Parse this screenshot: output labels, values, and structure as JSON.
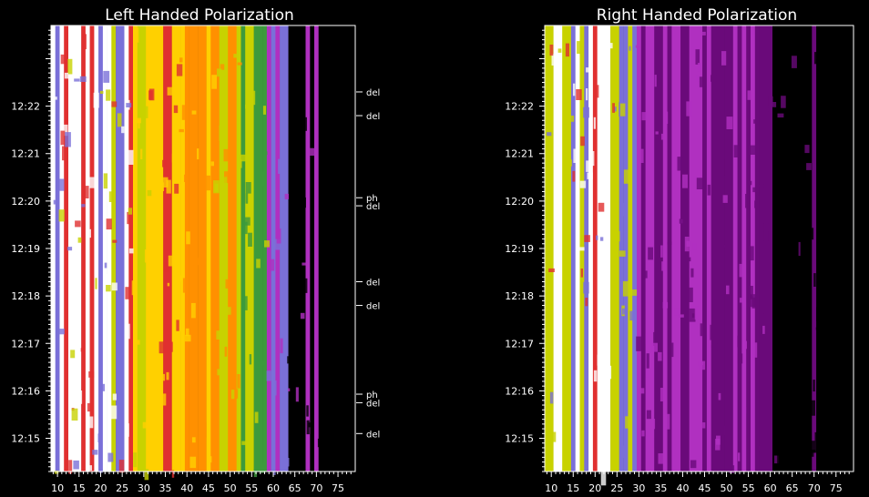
{
  "chart_data": [
    {
      "type": "heatmap",
      "title": "Left Handed Polarization",
      "xlabel": "",
      "ylabel": "",
      "xlim": [
        8.5,
        79
      ],
      "ylim": [
        734.3,
        743.7
      ],
      "x_ticks": [
        10,
        15,
        20,
        25,
        30,
        35,
        40,
        45,
        50,
        55,
        60,
        65,
        70,
        75
      ],
      "x_tick_labels": [
        "10",
        "15",
        "20",
        "25",
        "30",
        "35",
        "40",
        "45",
        "50",
        "55",
        "60",
        "65",
        "70",
        "75"
      ],
      "y_ticks": [
        735,
        736,
        737,
        738,
        739,
        740,
        741,
        742
      ],
      "y_tick_labels": [
        "12:15",
        "12:16",
        "12:17",
        "12:18",
        "12:19",
        "12:20",
        "12:21",
        "12:22"
      ],
      "annotations": [
        {
          "label": "del",
          "y": 742.3
        },
        {
          "label": "del",
          "y": 741.8
        },
        {
          "label": "ph",
          "y": 740.07
        },
        {
          "label": "del",
          "y": 739.9
        },
        {
          "label": "del",
          "y": 738.3
        },
        {
          "label": "del",
          "y": 737.8
        },
        {
          "label": "ph",
          "y": 735.93
        },
        {
          "label": "del",
          "y": 735.75
        },
        {
          "label": "del",
          "y": 735.1
        }
      ],
      "colorscale": [
        "#000000",
        "#6a0a7a",
        "#b030c0",
        "#7a70d8",
        "#3c9a3c",
        "#c8d200",
        "#ffd000",
        "#ff9000",
        "#e03030",
        "#ffffff"
      ]
    },
    {
      "type": "heatmap",
      "title": "Right Handed Polarization",
      "xlabel": "",
      "ylabel": "",
      "xlim": [
        8.5,
        79
      ],
      "ylim": [
        734.3,
        743.7
      ],
      "x_ticks": [
        10,
        15,
        20,
        25,
        30,
        35,
        40,
        45,
        50,
        55,
        60,
        65,
        70,
        75
      ],
      "x_tick_labels": [
        "10",
        "15",
        "20",
        "25",
        "30",
        "35",
        "40",
        "45",
        "50",
        "55",
        "60",
        "65",
        "70",
        "75"
      ],
      "y_ticks": [
        735,
        736,
        737,
        738,
        739,
        740,
        741,
        742
      ],
      "y_tick_labels": [
        "12:15",
        "12:16",
        "12:17",
        "12:18",
        "12:19",
        "12:20",
        "12:21",
        "12:22"
      ],
      "annotations": [],
      "colorscale": [
        "#000000",
        "#6a0a7a",
        "#b030c0",
        "#7a70d8",
        "#3c9a3c",
        "#c8d200",
        "#ffd000",
        "#ff9000",
        "#e03030",
        "#ffffff"
      ]
    }
  ]
}
